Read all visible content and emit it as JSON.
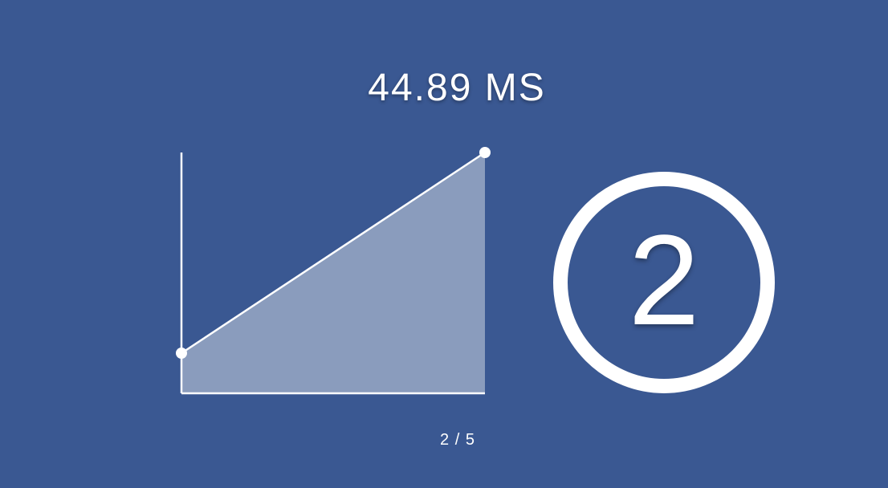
{
  "metric": {
    "value": "44.89",
    "unit": "MS",
    "label": "44.89 MS"
  },
  "chart_data": {
    "type": "area",
    "x": [
      0,
      1
    ],
    "y": [
      1,
      6
    ],
    "ylim": [
      0,
      6
    ],
    "xlim": [
      0,
      1
    ],
    "title": "",
    "xlabel": "",
    "ylabel": "",
    "fill_color": "#8a9cbd",
    "line_color": "#ffffff"
  },
  "step": {
    "current": "2"
  },
  "pager": {
    "label": "2 / 5"
  },
  "colors": {
    "background": "#3a5892",
    "foreground": "#ffffff",
    "area_fill": "#8a9cbd"
  }
}
